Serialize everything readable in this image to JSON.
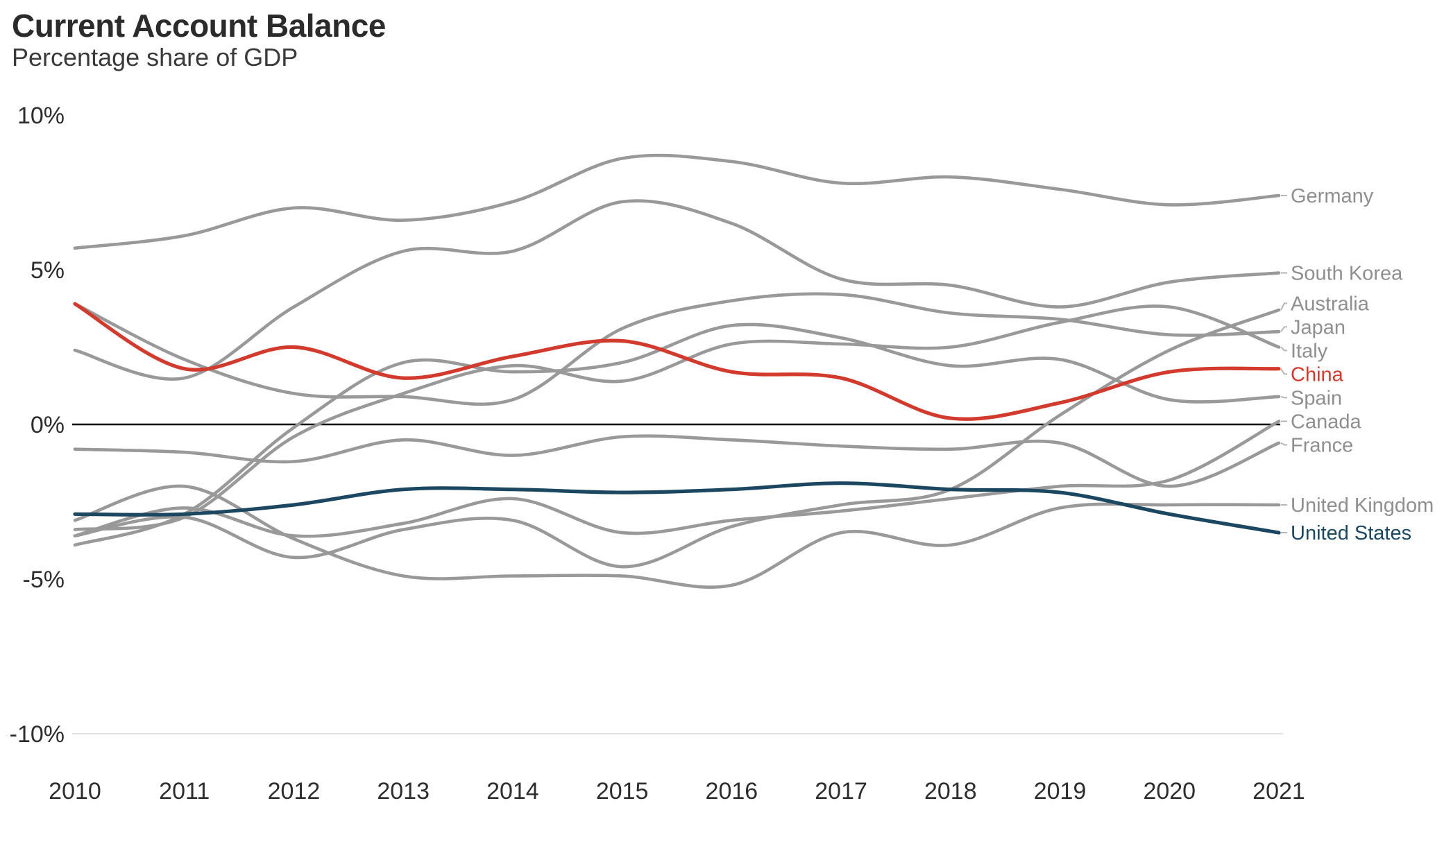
{
  "header": {
    "title": "Current Account Balance",
    "subtitle": "Percentage share of GDP"
  },
  "chart_data": {
    "type": "line",
    "title": "Current Account Balance",
    "subtitle": "Percentage share of GDP",
    "unit": "percent of GDP",
    "x": [
      2010,
      2011,
      2012,
      2013,
      2014,
      2015,
      2016,
      2017,
      2018,
      2019,
      2020,
      2021
    ],
    "ylim": [
      -10,
      10
    ],
    "y_ticks": [
      {
        "value": 10,
        "label": "10%"
      },
      {
        "value": 5,
        "label": "5%"
      },
      {
        "value": 0,
        "label": "0%"
      },
      {
        "value": -5,
        "label": "-5%"
      },
      {
        "value": -10,
        "label": "-10%"
      }
    ],
    "grid": "zero line black, light baseline at -10%, no other gridlines",
    "legend_position": "direct labels at right edge of lines",
    "colors": {
      "default_line": "#999999",
      "default_label": "#8f8f8f",
      "china_red": "#d23a2d",
      "us_navy": "#1c4761",
      "zero_line": "#000000",
      "baseline": "#e3e3e3",
      "connector": "#b5b5b5",
      "axis_text": "#2d2d2d"
    },
    "series": [
      {
        "name": "Germany",
        "color": "#999999",
        "label_color": "#8f8f8f",
        "width": 4.6,
        "values": [
          5.7,
          6.1,
          7.0,
          6.6,
          7.2,
          8.6,
          8.5,
          7.8,
          8.0,
          7.6,
          7.1,
          7.4
        ]
      },
      {
        "name": "South Korea",
        "color": "#999999",
        "label_color": "#8f8f8f",
        "width": 4.6,
        "values": [
          2.4,
          1.5,
          3.8,
          5.6,
          5.6,
          7.2,
          6.5,
          4.7,
          4.5,
          3.8,
          4.6,
          4.9
        ]
      },
      {
        "name": "Australia",
        "color": "#999999",
        "label_color": "#8f8f8f",
        "width": 4.6,
        "values": [
          -3.6,
          -3.0,
          -4.3,
          -3.4,
          -3.1,
          -4.6,
          -3.3,
          -2.6,
          -2.1,
          0.3,
          2.4,
          3.7
        ]
      },
      {
        "name": "Japan",
        "color": "#999999",
        "label_color": "#8f8f8f",
        "width": 4.6,
        "values": [
          3.9,
          2.1,
          1.0,
          0.9,
          0.8,
          3.1,
          4.0,
          4.2,
          3.6,
          3.4,
          2.9,
          3.0
        ]
      },
      {
        "name": "Italy",
        "color": "#999999",
        "label_color": "#8f8f8f",
        "width": 4.6,
        "values": [
          -3.4,
          -3.0,
          -0.4,
          1.0,
          1.9,
          1.4,
          2.6,
          2.6,
          2.5,
          3.3,
          3.8,
          2.5
        ]
      },
      {
        "name": "Spain",
        "color": "#999999",
        "label_color": "#8f8f8f",
        "width": 4.6,
        "values": [
          -3.9,
          -2.9,
          -0.1,
          2.0,
          1.7,
          2.0,
          3.2,
          2.8,
          1.9,
          2.1,
          0.8,
          0.9
        ]
      },
      {
        "name": "Canada",
        "color": "#999999",
        "label_color": "#8f8f8f",
        "width": 4.6,
        "values": [
          -3.6,
          -2.7,
          -3.6,
          -3.2,
          -2.4,
          -3.5,
          -3.1,
          -2.8,
          -2.4,
          -2.0,
          -1.8,
          0.1
        ]
      },
      {
        "name": "France",
        "color": "#999999",
        "label_color": "#8f8f8f",
        "width": 4.6,
        "values": [
          -0.8,
          -0.9,
          -1.2,
          -0.5,
          -1.0,
          -0.4,
          -0.5,
          -0.7,
          -0.8,
          -0.6,
          -2.0,
          -0.6
        ]
      },
      {
        "name": "United Kingdom",
        "color": "#999999",
        "label_color": "#8f8f8f",
        "width": 4.6,
        "values": [
          -3.1,
          -2.0,
          -3.7,
          -4.9,
          -4.9,
          -4.9,
          -5.2,
          -3.5,
          -3.9,
          -2.7,
          -2.6,
          -2.6
        ]
      },
      {
        "name": "China",
        "color": "#d23a2d",
        "label_color": "#d23a2d",
        "width": 5.2,
        "emphasis": true,
        "values": [
          3.9,
          1.8,
          2.5,
          1.5,
          2.2,
          2.7,
          1.7,
          1.5,
          0.2,
          0.7,
          1.7,
          1.8
        ]
      },
      {
        "name": "United States",
        "color": "#1c4761",
        "label_color": "#1c4761",
        "width": 5.2,
        "emphasis": true,
        "values": [
          -2.9,
          -2.9,
          -2.6,
          -2.1,
          -2.1,
          -2.2,
          -2.1,
          -1.9,
          -2.1,
          -2.2,
          -2.9,
          -3.5
        ]
      }
    ]
  }
}
